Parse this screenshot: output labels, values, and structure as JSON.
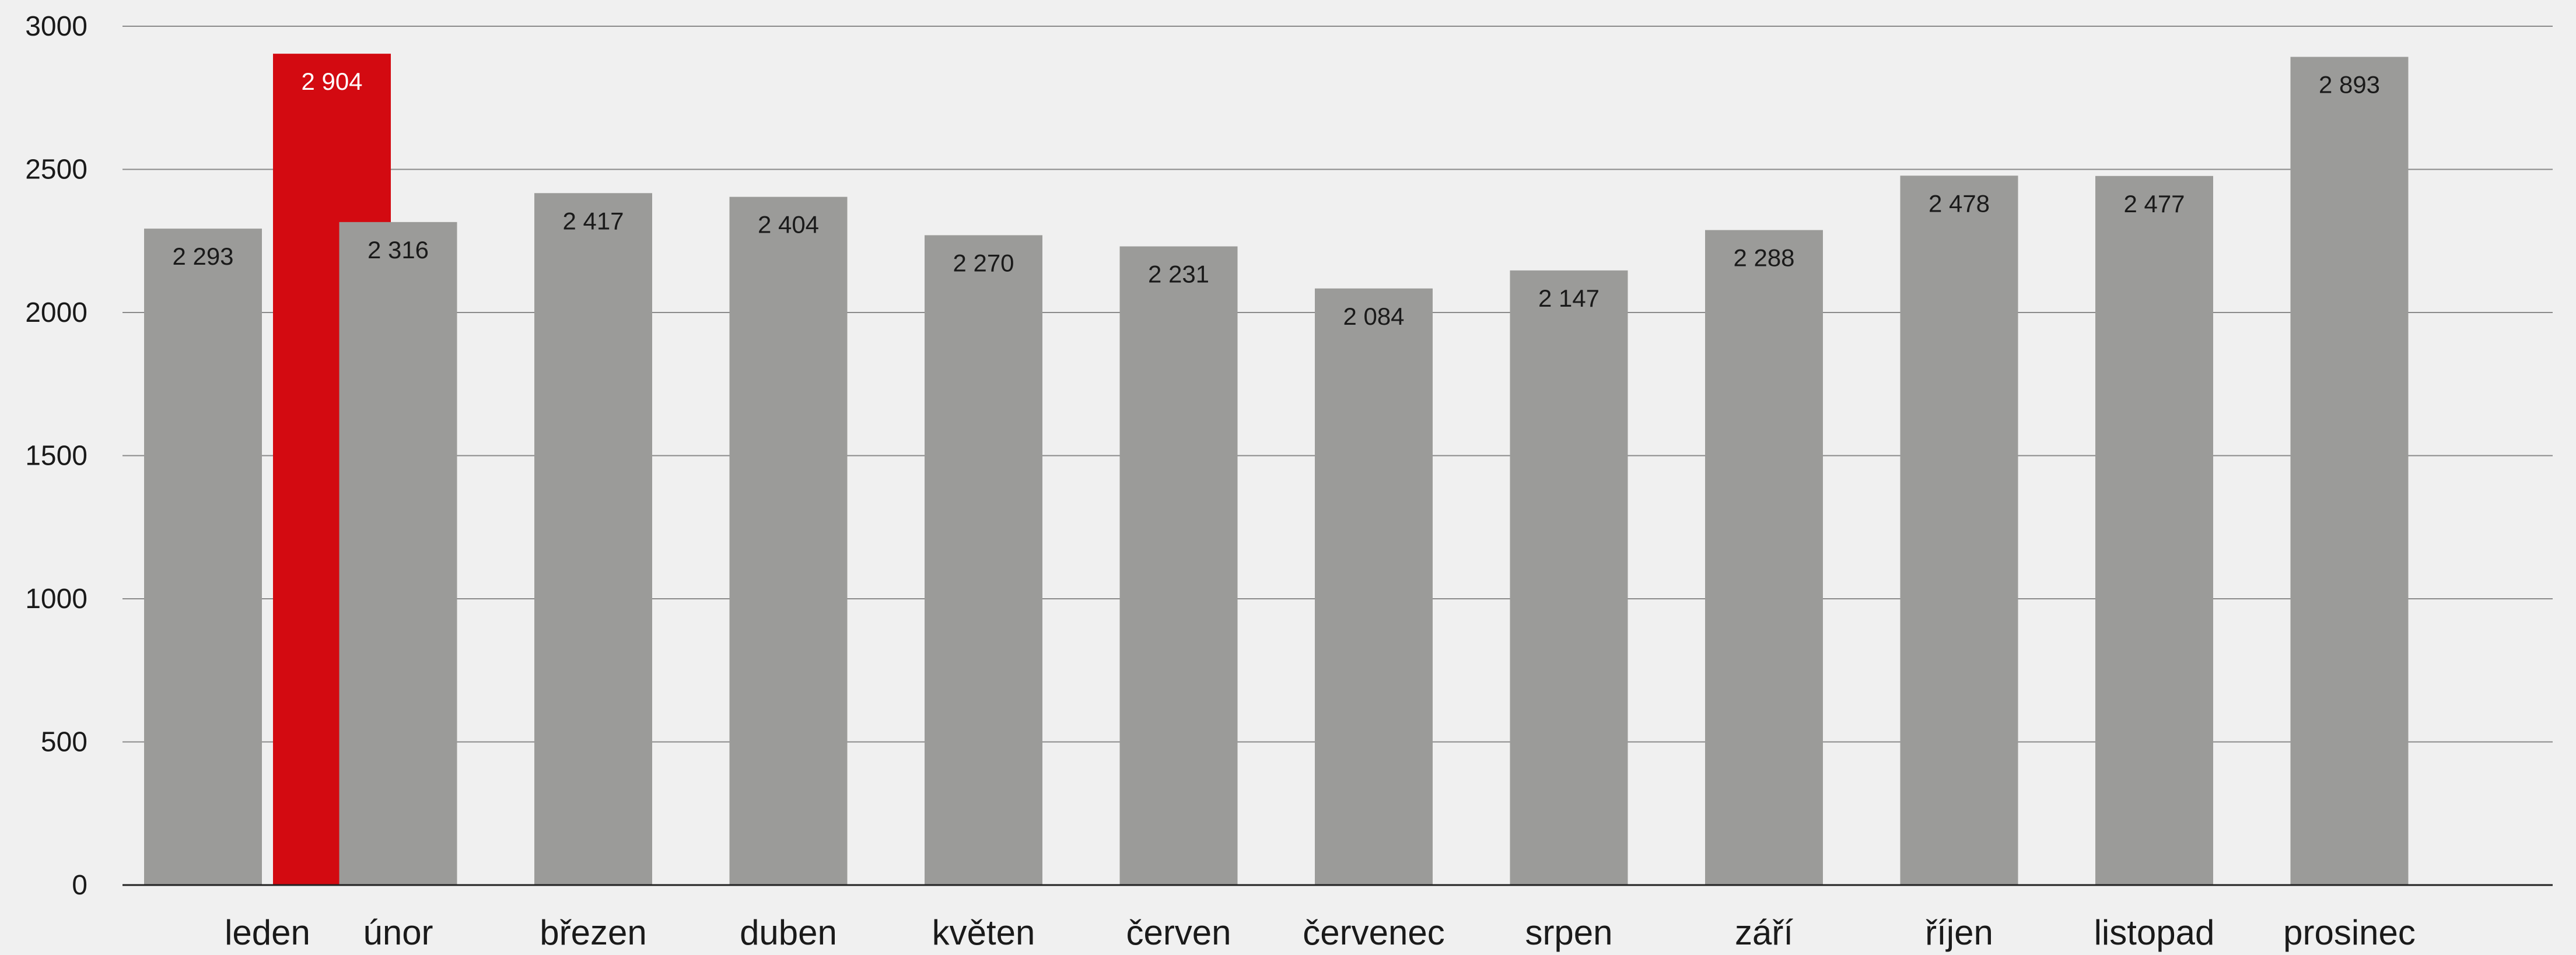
{
  "chart_data": {
    "type": "bar",
    "title": "",
    "xlabel": "",
    "ylabel": "",
    "ylim": [
      0,
      3000
    ],
    "yticks": [
      0,
      500,
      1000,
      1500,
      2000,
      2500,
      3000
    ],
    "grid": true,
    "legend": "none",
    "colors": {
      "bar": "#9b9b99",
      "highlight": "#d30a11",
      "background": "#f0f0f0",
      "grid": "#8a8a8a",
      "axis": "#222222",
      "text": "#1a1a1a",
      "highlight_text": "#ffffff"
    },
    "series": [
      {
        "values": [
          2293,
          2316,
          2417,
          2404,
          2270,
          2231,
          2084,
          2147,
          2288,
          2478,
          2477,
          2893
        ],
        "labels": [
          "2 293",
          "2 316",
          "2 417",
          "2 404",
          "2 270",
          "2 231",
          "2 084",
          "2 147",
          "2 288",
          "2 478",
          "2 477",
          "2 893"
        ]
      },
      {
        "values": [
          2904,
          null,
          null,
          null,
          null,
          null,
          null,
          null,
          null,
          null,
          null,
          null
        ],
        "labels": [
          "2 904",
          null,
          null,
          null,
          null,
          null,
          null,
          null,
          null,
          null,
          null,
          null
        ],
        "highlight": true
      }
    ],
    "categories": [
      "leden",
      "únor",
      "březen",
      "duben",
      "květen",
      "červen",
      "červenec",
      "srpen",
      "září",
      "říjen",
      "listopad",
      "prosinec"
    ]
  }
}
